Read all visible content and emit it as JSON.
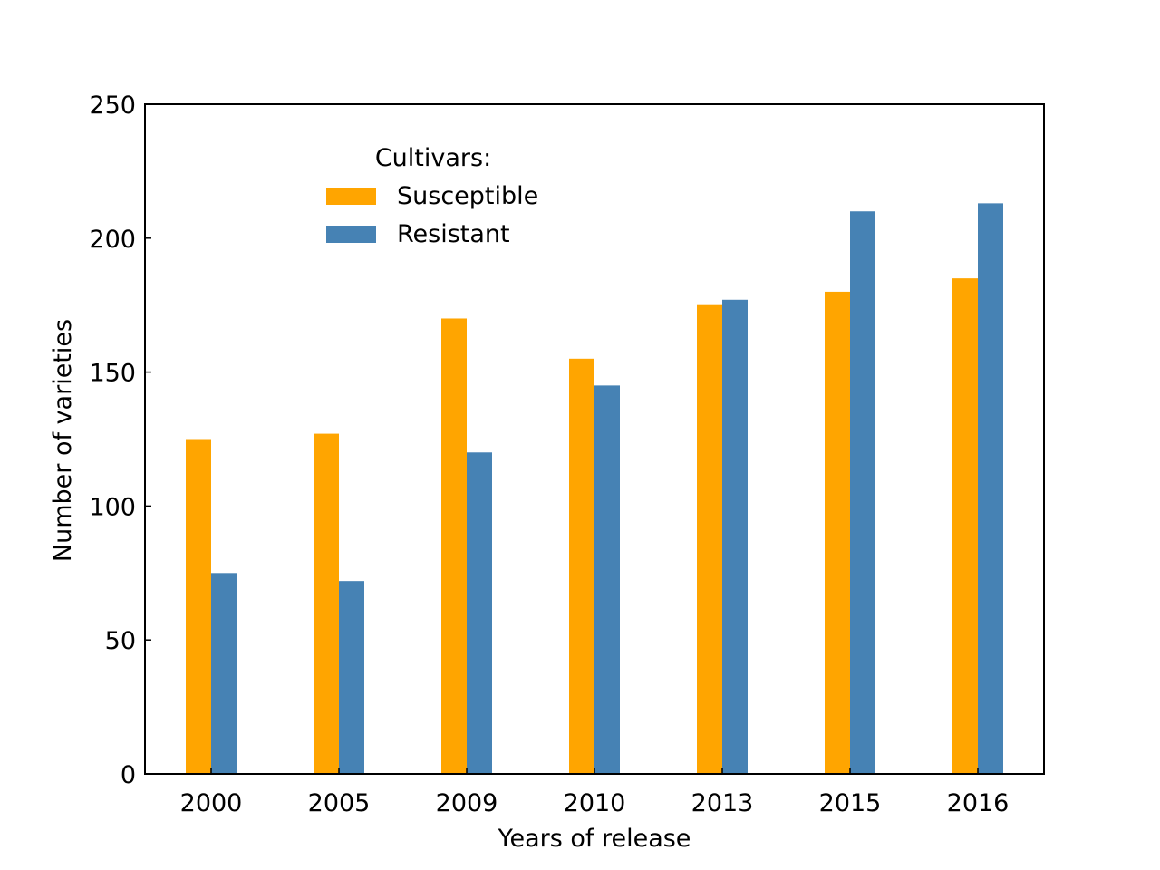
{
  "chart_data": {
    "type": "bar",
    "title": "",
    "xlabel": "Years of release",
    "ylabel": "Number of varieties",
    "categories": [
      "2000",
      "2005",
      "2009",
      "2010",
      "2013",
      "2015",
      "2016"
    ],
    "series": [
      {
        "name": "Susceptible",
        "color": "#FFA500",
        "values": [
          125,
          127,
          170,
          155,
          175,
          180,
          185
        ]
      },
      {
        "name": "Resistant",
        "color": "#4682B4",
        "values": [
          75,
          72,
          120,
          145,
          177,
          210,
          213
        ]
      }
    ],
    "ylim": [
      0,
      250
    ],
    "yticks": [
      "0",
      "50",
      "100",
      "150",
      "200",
      "250"
    ],
    "grid": false,
    "legend": {
      "title": "Cultivars:",
      "position": "top-left"
    }
  }
}
